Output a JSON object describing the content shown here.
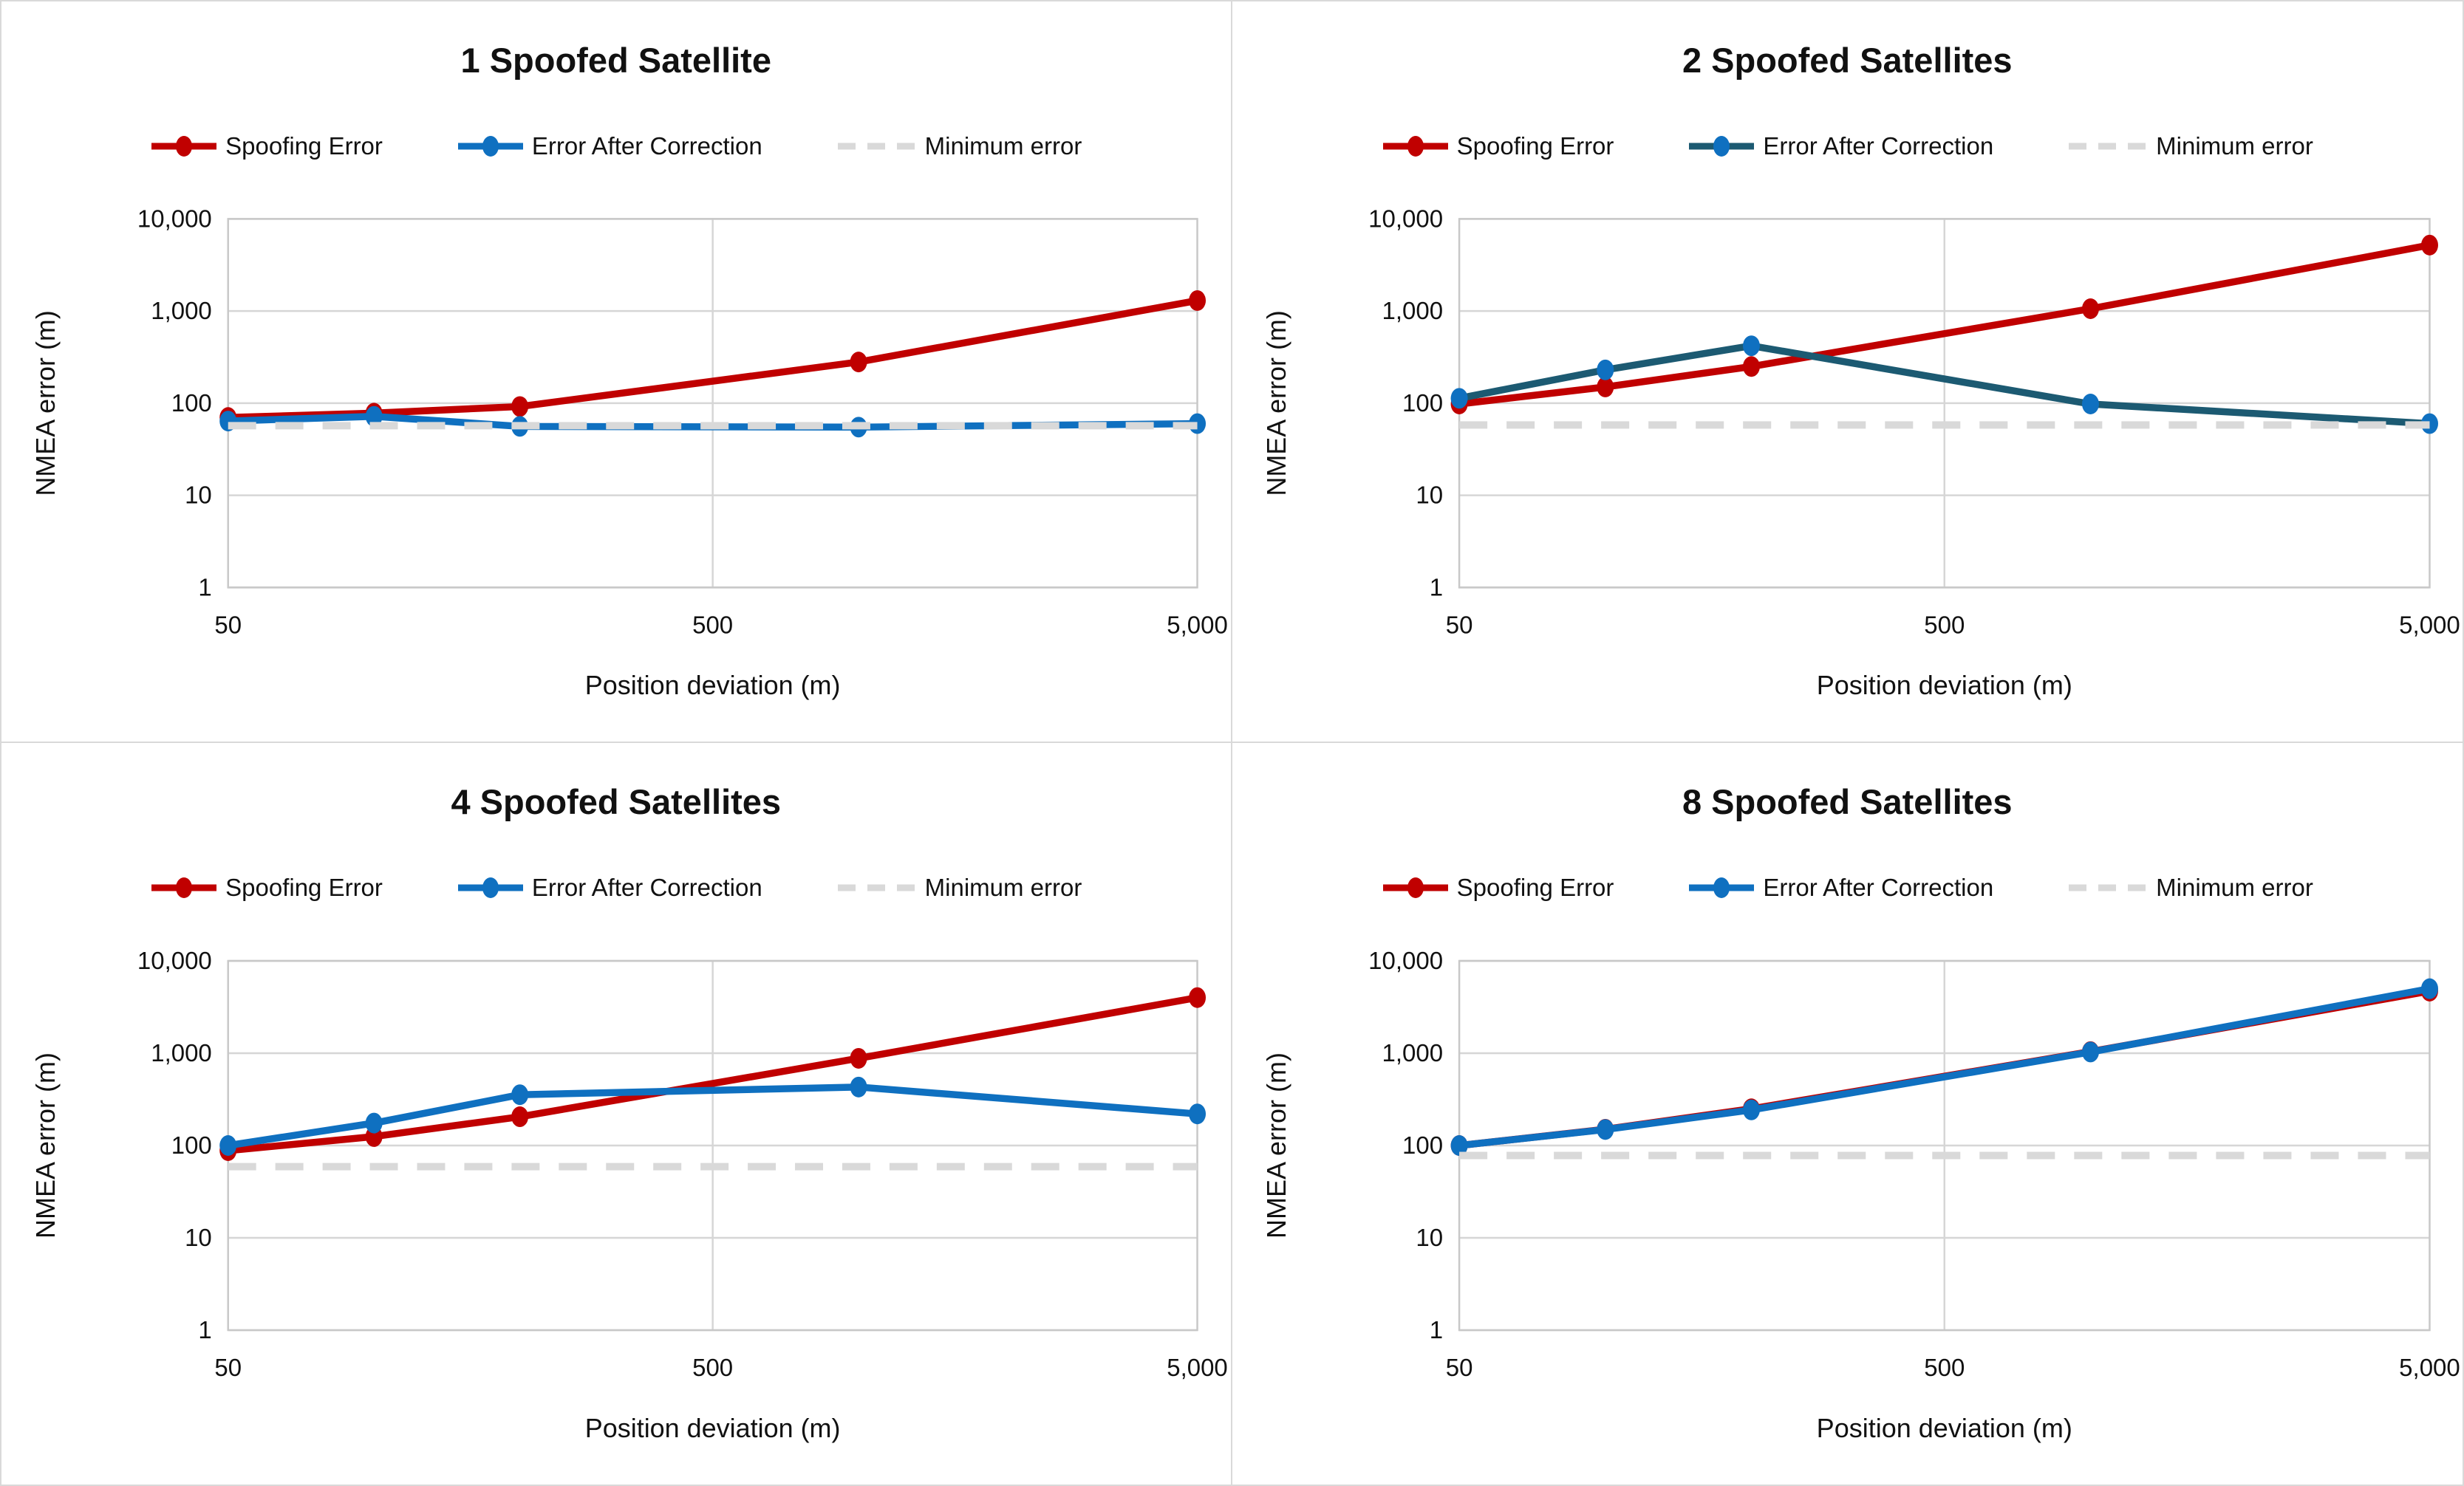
{
  "page": {
    "background": "#ffffff",
    "border_color": "#d9d9d9"
  },
  "colors": {
    "spoofing_red": "#c00000",
    "correction_blue": "#0f70c0",
    "correction_teal": "#1c5a72",
    "minimum_gray": "#d9d9d9",
    "gridline": "#d6d6d6",
    "plot_border": "#c8c8c8",
    "text": "#111111"
  },
  "axis": {
    "x_title": "Position deviation (m)",
    "y_title": "NMEA error (m)",
    "x_tick_values": [
      50,
      500,
      5000
    ],
    "x_tick_labels": [
      "50",
      "500",
      "5,000"
    ],
    "y_tick_values": [
      10000,
      1000,
      100,
      10,
      1
    ],
    "y_tick_labels": [
      "10,000",
      "1,000",
      "100",
      "10",
      "1"
    ],
    "xlim": [
      50,
      5000
    ],
    "ylim": [
      1,
      10000
    ],
    "x_scale": "log",
    "y_scale": "log"
  },
  "chart_data": [
    {
      "type": "line",
      "title": "1 Spoofed Satellite",
      "x": [
        50,
        100,
        200,
        1000,
        5000
      ],
      "series": [
        {
          "name": "Spoofing Error",
          "line_color": "#c00000",
          "marker_color": "#c00000",
          "values": [
            70,
            78,
            92,
            280,
            1300
          ]
        },
        {
          "name": "Error After Correction",
          "line_color": "#0f70c0",
          "marker_color": "#0f70c0",
          "values": [
            64,
            72,
            56,
            55,
            60
          ]
        },
        {
          "name": "Minimum error",
          "line_color": "#d9d9d9",
          "style": "dashed",
          "constant_value": 57
        }
      ]
    },
    {
      "type": "line",
      "title": "2 Spoofed Satellites",
      "x": [
        50,
        100,
        200,
        1000,
        5000
      ],
      "series": [
        {
          "name": "Spoofing Error",
          "line_color": "#c00000",
          "marker_color": "#c00000",
          "values": [
            98,
            150,
            250,
            1060,
            5200
          ]
        },
        {
          "name": "Error After Correction",
          "line_color": "#1c5a72",
          "marker_color": "#0f70c0",
          "values": [
            113,
            230,
            420,
            98,
            60
          ]
        },
        {
          "name": "Minimum error",
          "line_color": "#d9d9d9",
          "style": "dashed",
          "constant_value": 58
        }
      ]
    },
    {
      "type": "line",
      "title": "4 Spoofed Satellites",
      "x": [
        50,
        100,
        200,
        1000,
        5000
      ],
      "series": [
        {
          "name": "Spoofing Error",
          "line_color": "#c00000",
          "marker_color": "#c00000",
          "values": [
            88,
            125,
            205,
            880,
            4000
          ]
        },
        {
          "name": "Error After Correction",
          "line_color": "#0f70c0",
          "marker_color": "#0f70c0",
          "values": [
            100,
            175,
            355,
            430,
            220
          ]
        },
        {
          "name": "Minimum error",
          "line_color": "#d9d9d9",
          "style": "dashed",
          "constant_value": 59
        }
      ]
    },
    {
      "type": "line",
      "title": "8 Spoofed Satellites",
      "x": [
        50,
        100,
        200,
        1000,
        5000
      ],
      "series": [
        {
          "name": "Spoofing Error",
          "line_color": "#c00000",
          "marker_color": "#c00000",
          "values": [
            100,
            150,
            250,
            1040,
            4700
          ]
        },
        {
          "name": "Error After Correction",
          "line_color": "#0f70c0",
          "marker_color": "#0f70c0",
          "values": [
            100,
            149,
            243,
            1030,
            5000
          ]
        },
        {
          "name": "Minimum error",
          "line_color": "#d9d9d9",
          "style": "dashed",
          "constant_value": 78
        }
      ]
    }
  ]
}
